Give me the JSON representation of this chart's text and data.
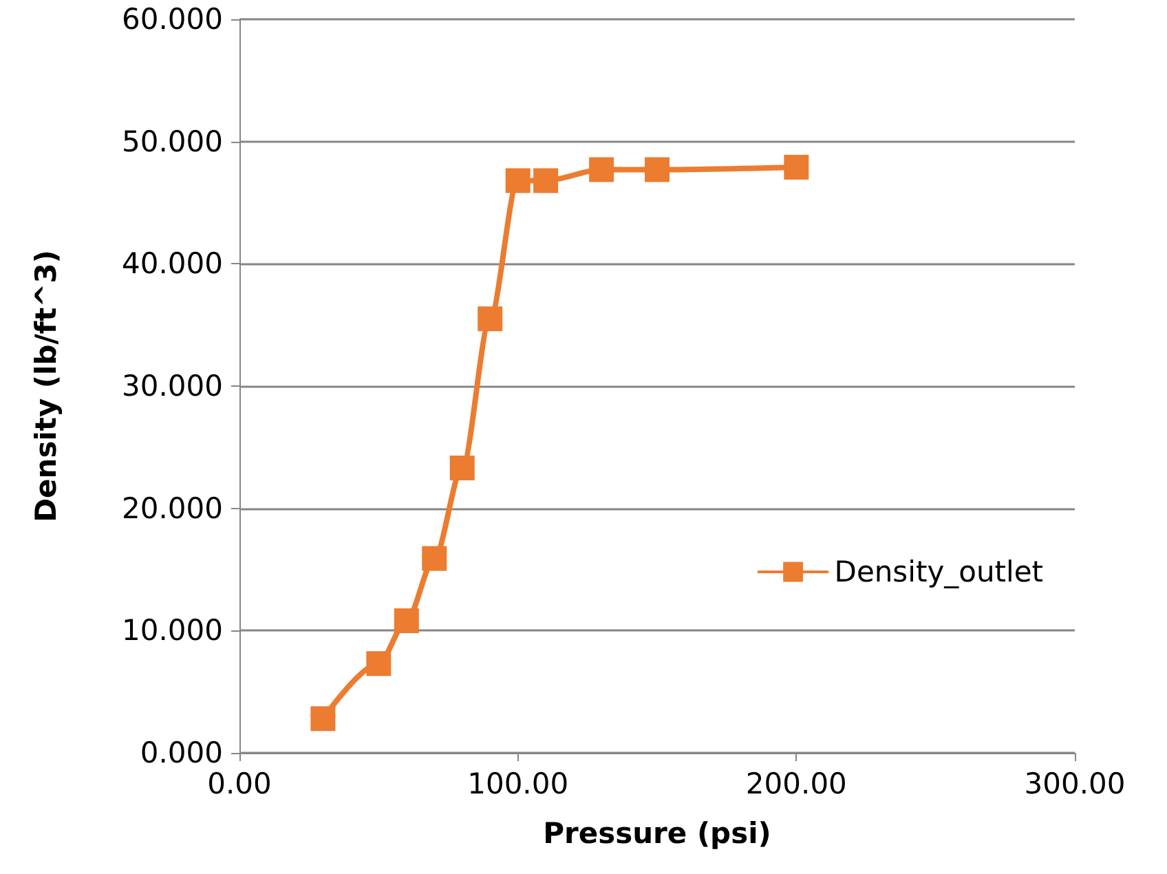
{
  "chart_data": {
    "type": "line",
    "xlabel": "Pressure (psi)",
    "ylabel": "Density (lb/ft^3)",
    "x": [
      30,
      50,
      60,
      70,
      80,
      90,
      100,
      110,
      130,
      150,
      200
    ],
    "series": [
      {
        "name": "Density_outlet",
        "color": "#ec7c30",
        "values": [
          2.8,
          7.3,
          10.8,
          15.9,
          23.3,
          35.5,
          46.8,
          46.8,
          47.7,
          47.7,
          47.9
        ]
      }
    ],
    "xlim": [
      0,
      300
    ],
    "xticks": [
      {
        "value": 0,
        "label": "0.00"
      },
      {
        "value": 100,
        "label": "100.00"
      },
      {
        "value": 200,
        "label": "200.00"
      },
      {
        "value": 300,
        "label": "300.00"
      }
    ],
    "ylim": [
      0,
      60
    ],
    "yticks": [
      {
        "value": 0,
        "label": "0.000"
      },
      {
        "value": 10,
        "label": "10.000"
      },
      {
        "value": 20,
        "label": "20.000"
      },
      {
        "value": 30,
        "label": "30.000"
      },
      {
        "value": 40,
        "label": "40.000"
      },
      {
        "value": 50,
        "label": "50.000"
      },
      {
        "value": 60,
        "label": "60.000"
      }
    ],
    "grid": "y",
    "legend": "right",
    "marker": "square",
    "line_style": "solid"
  }
}
